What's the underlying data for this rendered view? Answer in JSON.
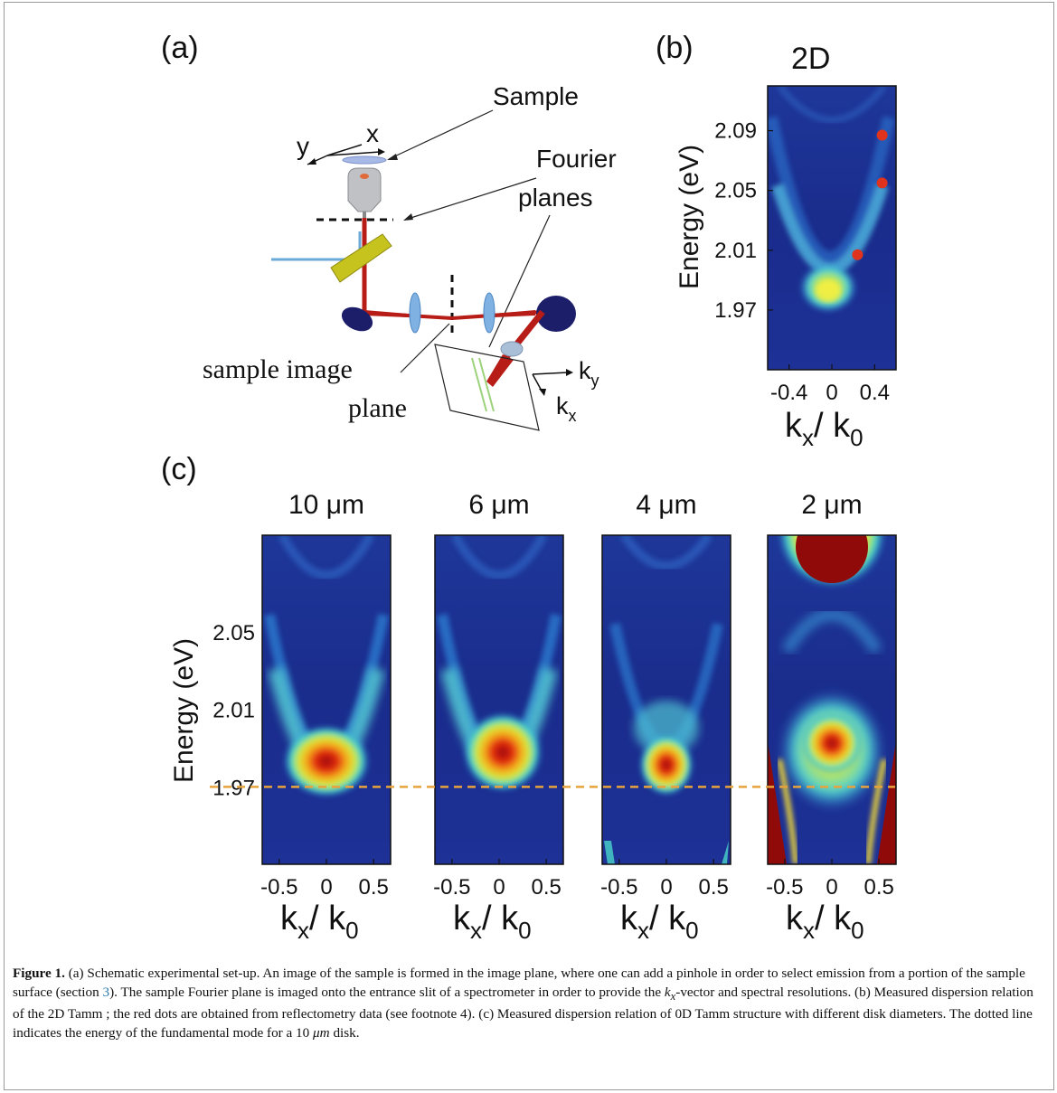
{
  "panels": {
    "a": {
      "label": "(a)",
      "sample": "Sample",
      "axis_y": "y",
      "axis_x": "x",
      "fourier_line1": "Fourier",
      "fourier_line2": "planes",
      "image_plane_line1": "sample image",
      "image_plane_line2": "plane",
      "ky_main": "k",
      "ky_sub": "y",
      "kx_main": "k",
      "kx_sub": "x"
    },
    "b": {
      "label": "(b)",
      "title": "2D",
      "ylabel": "Energy (eV)",
      "yticks": [
        "2.09",
        "2.05",
        "2.01",
        "1.97"
      ],
      "xticks": [
        "-0.4",
        "0",
        "0.4"
      ]
    },
    "c": {
      "label": "(c)",
      "ylabel": "Energy (eV)",
      "yticks": [
        "2.05",
        "2.01",
        "1.97"
      ],
      "subplots": [
        {
          "title": "10 μm",
          "xticks": [
            "-0.5",
            "0",
            "0.5"
          ]
        },
        {
          "title": "6 μm",
          "xticks": [
            "-0.5",
            "0",
            "0.5"
          ]
        },
        {
          "title": "4 μm",
          "xticks": [
            "-0.5",
            "0",
            "0.5"
          ]
        },
        {
          "title": "2 μm",
          "xticks": [
            "-0.5",
            "0",
            "0.5"
          ]
        }
      ]
    },
    "xlabel": {
      "k": "k",
      "x": "x",
      "slash": "/ k",
      "zero": "0"
    }
  },
  "chart_data": [
    {
      "type": "heatmap",
      "panel": "b",
      "title": "2D",
      "xlabel": "kx/ k0",
      "ylabel": "Energy (eV)",
      "xlim": [
        -0.6,
        0.6
      ],
      "ylim": [
        1.93,
        2.12
      ],
      "dispersion_minimum": {
        "kx": 0.0,
        "energy": 1.98
      },
      "red_dots": [
        {
          "kx": 0.24,
          "energy": 2.007
        },
        {
          "kx": 0.47,
          "energy": 2.055
        },
        {
          "kx": 0.47,
          "energy": 2.087
        }
      ]
    },
    {
      "type": "heatmap",
      "panel": "c",
      "xlabel": "kx/ k0",
      "ylabel": "Energy (eV)",
      "xlim": [
        -0.68,
        0.68
      ],
      "ylim": [
        1.93,
        2.1
      ],
      "dashed_line_energy": 1.97,
      "disks": [
        {
          "diameter": "10 μm",
          "mode_energy": 1.972
        },
        {
          "diameter": "6 μm",
          "mode_energy": 1.976
        },
        {
          "diameter": "4 μm",
          "mode_energy": 1.973
        },
        {
          "diameter": "2 μm",
          "mode_energy": 1.985
        }
      ]
    }
  ],
  "caption": {
    "lead": "Figure 1.",
    "part1": " (a) Schematic experimental set-up. An image of the sample is formed in the image plane, where one can add a pinhole in order to select emission from a portion of the sample surface (section ",
    "section_ref": "3",
    "part2": "). The sample Fourier plane is imaged onto the entrance slit of a spectrometer in order to provide the ",
    "k": "k",
    "k_sub": "x",
    "part3": "-vector and spectral resolutions. (b) Measured dispersion relation of the 2D Tamm ; the red dots are obtained from reflectometry data (see footnote 4). (c) Measured dispersion relation of 0D Tamm structure with different disk diameters. The dotted line indicates the energy of the fundamental mode for a 10 ",
    "unit": "μm",
    "part4": " disk."
  },
  "colors": {
    "background": "#1a2a8c",
    "dispersion": "#d2231a",
    "dashed_line": "#e8a33c",
    "red_dot": "#e0331e"
  }
}
